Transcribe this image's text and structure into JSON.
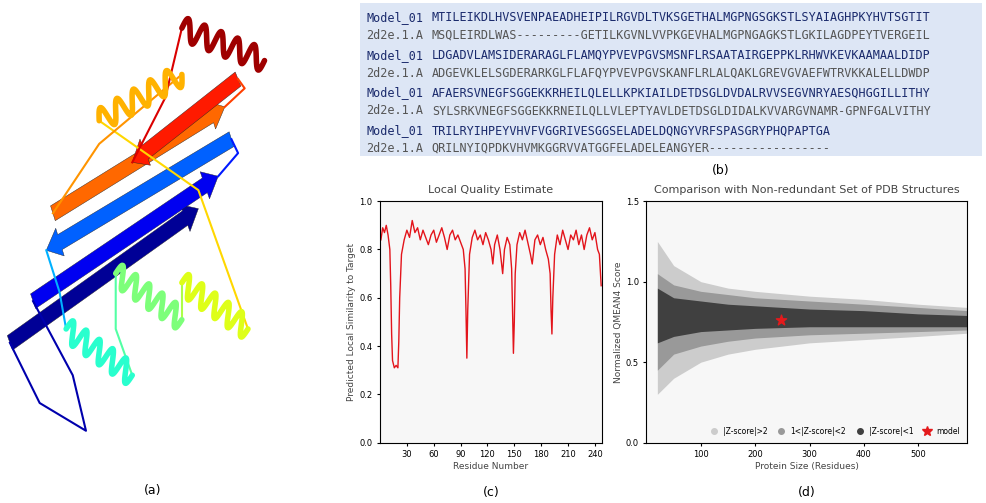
{
  "figure": {
    "panel_labels": [
      "(a)",
      "(b)",
      "(c)",
      "(d)"
    ]
  },
  "alignment": {
    "blocks": [
      [
        {
          "name": "Model_01",
          "sequence": "MTILEIKDLHVSVENPAEADHEIPILRGVDLTVKSGETHALMGPNGSGKSTLSYAIAGHPKYHVTSGTIT"
        },
        {
          "name": "2d2e.1.A",
          "sequence": "MSQLEIRDLWAS---------GETILKGVNLVVPKGEVHALMGPNGAGKSTLGKILAGDPEYTVERGEIL"
        }
      ],
      [
        {
          "name": "Model_01",
          "sequence": "LDGADVLAMSIDERARAGLFLAMQYPVEVPGVSMSNFLRSAATAIRGEPPKLRHWVKEVKAAMAALDIDP"
        },
        {
          "name": "2d2e.1.A",
          "sequence": "ADGEVKLELSGDERARKGLFLAFQYPVEVPGVSKANFLRLALQAKLGREVGVAEFWTRVKKALELLDWDP"
        }
      ],
      [
        {
          "name": "Model_01",
          "sequence": "AFAERSVNEGFSGGEKKRHEILQLELLKPKIAILDETDSGLDVDALRVVSEGVNRYAESQHGGILLITHY"
        },
        {
          "name": "2d2e.1.A",
          "sequence": "SYLSRKVNEGFSGGEKKRNEILQLLVLEPTYAVLDETDSGLDIDALKVVARGVNAMR-GPNFGALVITHY"
        }
      ],
      [
        {
          "name": "Model_01",
          "sequence": "TRILRYIHPEYVHVFVGGRIVESGGSELADELDQNGYVRFSPASGRYPHQPAPTGA"
        },
        {
          "name": "2d2e.1.A",
          "sequence": "QRILNYIQPDKVHVMKGGRVVATGGFELADELEANGYER-----------------"
        }
      ]
    ]
  },
  "chart_data": [
    {
      "type": "line",
      "title": "Local Quality Estimate",
      "x_label": "Residue Number",
      "y_label": "Predicted Local Similarity to Target",
      "color": "#e3141b",
      "x": [
        1,
        3,
        5,
        7,
        9,
        11,
        12,
        13,
        14,
        16,
        18,
        20,
        21,
        22,
        24,
        27,
        30,
        33,
        36,
        39,
        42,
        45,
        48,
        51,
        54,
        57,
        60,
        63,
        66,
        69,
        72,
        75,
        78,
        81,
        84,
        87,
        90,
        93,
        95,
        96,
        97,
        98,
        100,
        103,
        106,
        109,
        112,
        115,
        118,
        121,
        124,
        126,
        128,
        131,
        134,
        137,
        139,
        142,
        145,
        147,
        148,
        149,
        150,
        151,
        153,
        156,
        159,
        162,
        165,
        168,
        170,
        173,
        176,
        179,
        182,
        185,
        188,
        190,
        191,
        192,
        193,
        195,
        198,
        201,
        204,
        207,
        210,
        213,
        216,
        219,
        222,
        225,
        228,
        231,
        234,
        237,
        240,
        243,
        245,
        247
      ],
      "values": [
        0.84,
        0.89,
        0.87,
        0.9,
        0.86,
        0.8,
        0.65,
        0.45,
        0.34,
        0.31,
        0.32,
        0.31,
        0.42,
        0.6,
        0.78,
        0.84,
        0.88,
        0.85,
        0.92,
        0.87,
        0.89,
        0.84,
        0.88,
        0.85,
        0.82,
        0.86,
        0.88,
        0.83,
        0.86,
        0.89,
        0.85,
        0.8,
        0.86,
        0.88,
        0.84,
        0.86,
        0.83,
        0.8,
        0.72,
        0.55,
        0.35,
        0.55,
        0.78,
        0.85,
        0.88,
        0.84,
        0.86,
        0.82,
        0.87,
        0.84,
        0.8,
        0.74,
        0.82,
        0.86,
        0.8,
        0.7,
        0.8,
        0.85,
        0.82,
        0.72,
        0.55,
        0.37,
        0.5,
        0.7,
        0.82,
        0.87,
        0.84,
        0.88,
        0.83,
        0.78,
        0.74,
        0.84,
        0.86,
        0.82,
        0.85,
        0.8,
        0.76,
        0.7,
        0.55,
        0.45,
        0.6,
        0.78,
        0.86,
        0.82,
        0.88,
        0.84,
        0.8,
        0.86,
        0.84,
        0.88,
        0.82,
        0.86,
        0.8,
        0.86,
        0.89,
        0.84,
        0.87,
        0.8,
        0.78,
        0.65
      ],
      "xlim": [
        0,
        248
      ],
      "ylim": [
        0,
        1
      ],
      "xticks": [
        30,
        60,
        90,
        120,
        150,
        180,
        210,
        240
      ],
      "yticks": [
        {
          "value": 0,
          "label": "0.0"
        },
        {
          "value": 0.2,
          "label": "0.2"
        },
        {
          "value": 0.4,
          "label": "0.4"
        },
        {
          "value": 0.6,
          "label": "0.6"
        },
        {
          "value": 0.8,
          "label": "0.8"
        },
        {
          "value": 1.0,
          "label": "1.0"
        }
      ]
    },
    {
      "type": "scatter",
      "title": "Comparison with Non-redundant Set of PDB Structures",
      "x_label": "Protein Size (Residues)",
      "y_label": "Normalized QMEAN4 Score",
      "legend": "lower right",
      "series": [
        {
          "name": "|Z-score|>2",
          "type": "area",
          "color": "#cccccc",
          "marker": "circle",
          "x": [
            20,
            50,
            100,
            150,
            200,
            300,
            400,
            500,
            590
          ],
          "lower": [
            0.3,
            0.4,
            0.5,
            0.55,
            0.58,
            0.62,
            0.64,
            0.66,
            0.68
          ],
          "upper": [
            1.25,
            1.1,
            1.0,
            0.96,
            0.94,
            0.91,
            0.89,
            0.86,
            0.84
          ]
        },
        {
          "name": "1<|Z-score|<2",
          "type": "area",
          "color": "#999999",
          "marker": "circle",
          "x": [
            20,
            50,
            100,
            150,
            200,
            300,
            400,
            500,
            590
          ],
          "lower": [
            0.45,
            0.55,
            0.6,
            0.63,
            0.65,
            0.67,
            0.68,
            0.69,
            0.7
          ],
          "upper": [
            1.05,
            0.98,
            0.94,
            0.92,
            0.9,
            0.88,
            0.86,
            0.84,
            0.82
          ]
        },
        {
          "name": "|Z-score|<1",
          "type": "area",
          "color": "#404040",
          "marker": "circle",
          "x": [
            20,
            50,
            100,
            150,
            200,
            300,
            400,
            500,
            590
          ],
          "lower": [
            0.62,
            0.66,
            0.69,
            0.7,
            0.71,
            0.72,
            0.72,
            0.72,
            0.72
          ],
          "upper": [
            0.96,
            0.9,
            0.88,
            0.86,
            0.85,
            0.83,
            0.82,
            0.8,
            0.79
          ]
        },
        {
          "name": "model",
          "type": "scatter",
          "color": "#e41a1c",
          "marker": "star",
          "x": [
            248
          ],
          "values": [
            0.76
          ]
        }
      ],
      "xlim": [
        0,
        590
      ],
      "ylim": [
        0,
        1.5
      ],
      "xticks": [
        100,
        200,
        300,
        400,
        500
      ],
      "yticks": [
        {
          "value": 0,
          "label": "0.0"
        },
        {
          "value": 0.5,
          "label": "0.5"
        },
        {
          "value": 1.0,
          "label": "1.0"
        },
        {
          "value": 1.5,
          "label": "1.5"
        }
      ]
    }
  ]
}
